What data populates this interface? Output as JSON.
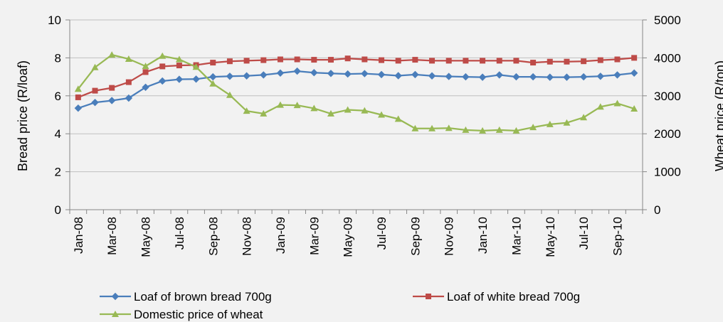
{
  "chart_data": {
    "type": "line",
    "title": "",
    "xlabel": "",
    "ylabel": "Bread price (R/loaf)",
    "y2label": "Wheat price (R/ton)",
    "ylim": [
      0,
      10
    ],
    "y2lim": [
      0,
      5000
    ],
    "yticks": [
      "0",
      "2",
      "4",
      "6",
      "8",
      "10"
    ],
    "y2ticks": [
      "0",
      "1000",
      "2000",
      "3000",
      "4000",
      "5000"
    ],
    "grid": "horizontal",
    "legend_position": "bottom",
    "x": [
      "Jan-08",
      "Feb-08",
      "Mar-08",
      "Apr-08",
      "May-08",
      "Jun-08",
      "Jul-08",
      "Aug-08",
      "Sep-08",
      "Oct-08",
      "Nov-08",
      "Dec-08",
      "Jan-09",
      "Feb-09",
      "Mar-09",
      "Apr-09",
      "May-09",
      "Jun-09",
      "Jul-09",
      "Aug-09",
      "Sep-09",
      "Oct-09",
      "Nov-09",
      "Dec-09",
      "Jan-10",
      "Feb-10",
      "Mar-10",
      "Apr-10",
      "May-10",
      "Jun-10",
      "Jul-10",
      "Aug-10",
      "Sep-10",
      "Oct-10"
    ],
    "x_tick_labels": [
      "Jan-08",
      "",
      "Mar-08",
      "",
      "May-08",
      "",
      "Jul-08",
      "",
      "Sep-08",
      "",
      "Nov-08",
      "",
      "Jan-09",
      "",
      "Mar-09",
      "",
      "May-09",
      "",
      "Jul-09",
      "",
      "Sep-09",
      "",
      "Nov-09",
      "",
      "Jan-10",
      "",
      "Mar-10",
      "",
      "May-10",
      "",
      "Jul-10",
      "",
      "Sep-10",
      ""
    ],
    "series": [
      {
        "name": "Loaf of brown bread 700g",
        "axis": "left",
        "color": "#4a7ebb",
        "marker": "diamond",
        "values": [
          5.35,
          5.65,
          5.75,
          5.88,
          6.45,
          6.78,
          6.87,
          6.88,
          7.0,
          7.03,
          7.05,
          7.1,
          7.2,
          7.3,
          7.22,
          7.18,
          7.15,
          7.17,
          7.12,
          7.06,
          7.12,
          7.05,
          7.02,
          7.0,
          6.98,
          7.1,
          7.0,
          7.0,
          6.98,
          6.98,
          7.0,
          7.03,
          7.1,
          7.2
        ]
      },
      {
        "name": "Loaf of white bread 700g",
        "axis": "left",
        "color": "#be4b48",
        "marker": "square",
        "values": [
          5.92,
          6.27,
          6.42,
          6.72,
          7.25,
          7.55,
          7.6,
          7.62,
          7.75,
          7.82,
          7.85,
          7.88,
          7.92,
          7.92,
          7.9,
          7.9,
          7.97,
          7.92,
          7.88,
          7.85,
          7.9,
          7.85,
          7.85,
          7.85,
          7.85,
          7.85,
          7.85,
          7.75,
          7.8,
          7.8,
          7.82,
          7.88,
          7.92,
          8.0
        ]
      },
      {
        "name": "Domestic price of wheat",
        "axis": "right",
        "color": "#98b954",
        "marker": "triangle",
        "values": [
          3180,
          3750,
          4080,
          3970,
          3780,
          4050,
          3960,
          3760,
          3320,
          3020,
          2600,
          2530,
          2760,
          2750,
          2670,
          2530,
          2630,
          2610,
          2500,
          2390,
          2140,
          2140,
          2150,
          2100,
          2080,
          2100,
          2080,
          2170,
          2250,
          2290,
          2430,
          2710,
          2800,
          2660
        ]
      }
    ]
  }
}
